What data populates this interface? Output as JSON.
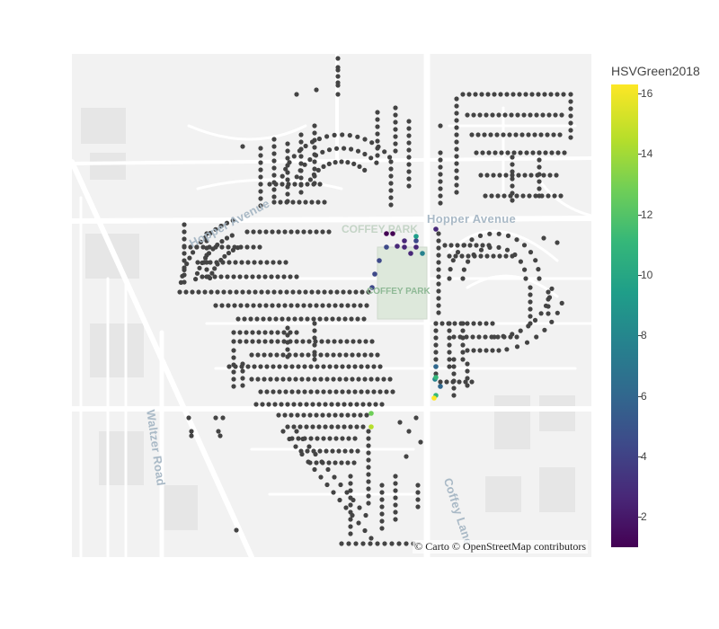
{
  "map": {
    "basemap": "carto-positron",
    "labels": {
      "hopper_avenue": "Hopper Avenue",
      "hopper_avenue_west": "Hopper Avenue",
      "coffey_park": "COFFEY PARK",
      "coffey_park_faint": "COFFEY PARK",
      "waltzer_road": "Waltzer Road",
      "coffey_lane": "Coffey Lane"
    },
    "attribution": "© Carto © OpenStreetMap contributors",
    "marker_default_color": "#444444"
  },
  "colorbar": {
    "title": "HSVGreen2018",
    "colorscale": "Viridis",
    "range": [
      1,
      16.3
    ],
    "ticks": [
      "2",
      "4",
      "6",
      "8",
      "10",
      "12",
      "14",
      "16"
    ]
  },
  "chart_data": {
    "type": "scatter",
    "colored_points_values": [
      1,
      1.5,
      2,
      2,
      2.5,
      3,
      3,
      3.5,
      4,
      4,
      4.5,
      5,
      5,
      6,
      6.5,
      7,
      8,
      10,
      11,
      12,
      13,
      15,
      16
    ]
  }
}
